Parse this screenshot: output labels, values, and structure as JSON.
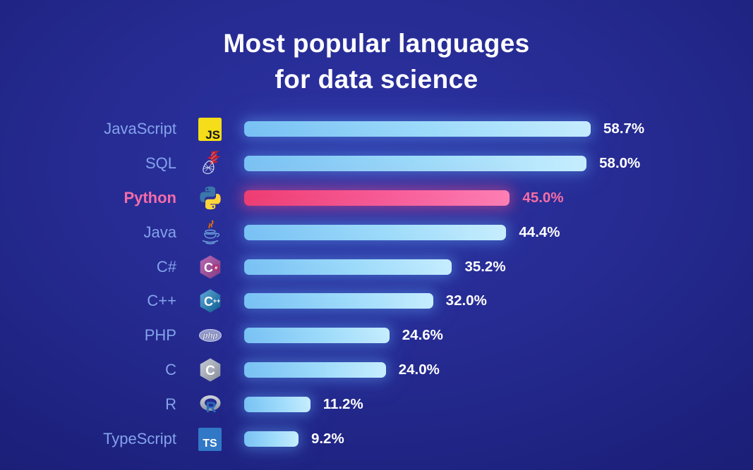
{
  "title_lines": [
    "Most popular languages",
    "for data science"
  ],
  "colors": {
    "background_center": "#2d33a3",
    "background_edge": "#191c6f",
    "bar": "#9fdcfa",
    "highlight_bar": "#f9609b",
    "label_text": "#84a3ea",
    "highlight_label_text": "#f46ca8",
    "value_text": "#ffffff",
    "title_text": "#ffffff"
  },
  "chart_data": {
    "type": "bar",
    "orientation": "horizontal",
    "title": "Most popular languages for data science",
    "unit": "%",
    "value_axis_range": [
      0,
      60
    ],
    "grid": false,
    "legend": false,
    "highlighted_category": "Python",
    "categories": [
      "JavaScript",
      "SQL",
      "Python",
      "Java",
      "C#",
      "C++",
      "PHP",
      "C",
      "R",
      "TypeScript"
    ],
    "values": [
      58.7,
      58.0,
      45.0,
      44.4,
      35.2,
      32.0,
      24.6,
      24.0,
      11.2,
      9.2
    ],
    "rows": [
      {
        "label": "JavaScript",
        "icon": "javascript-icon",
        "value": 58.7,
        "display": "58.7%",
        "highlight": false
      },
      {
        "label": "SQL",
        "icon": "sql-server-icon",
        "value": 58.0,
        "display": "58.0%",
        "highlight": false
      },
      {
        "label": "Python",
        "icon": "python-icon",
        "value": 45.0,
        "display": "45.0%",
        "highlight": true
      },
      {
        "label": "Java",
        "icon": "java-icon",
        "value": 44.4,
        "display": "44.4%",
        "highlight": false
      },
      {
        "label": "C#",
        "icon": "csharp-icon",
        "value": 35.2,
        "display": "35.2%",
        "highlight": false
      },
      {
        "label": "C++",
        "icon": "cpp-icon",
        "value": 32.0,
        "display": "32.0%",
        "highlight": false
      },
      {
        "label": "PHP",
        "icon": "php-icon",
        "value": 24.6,
        "display": "24.6%",
        "highlight": false
      },
      {
        "label": "C",
        "icon": "c-icon",
        "value": 24.0,
        "display": "24.0%",
        "highlight": false
      },
      {
        "label": "R",
        "icon": "r-icon",
        "value": 11.2,
        "display": "11.2%",
        "highlight": false
      },
      {
        "label": "TypeScript",
        "icon": "typescript-icon",
        "value": 9.2,
        "display": "9.2%",
        "highlight": false
      }
    ]
  }
}
